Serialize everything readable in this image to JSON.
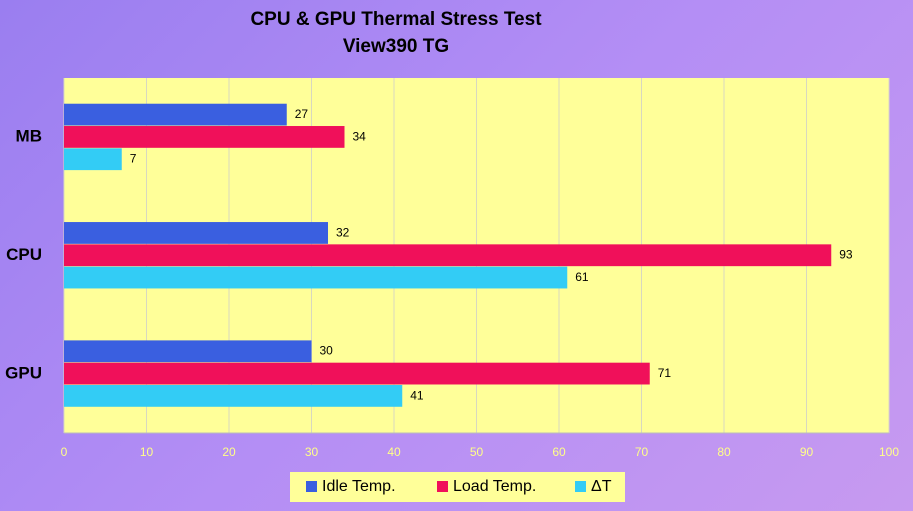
{
  "chart_data": {
    "type": "bar",
    "orientation": "horizontal",
    "title": "CPU & GPU Thermal Stress Test",
    "subtitle": "View390 TG",
    "categories": [
      "MB",
      "CPU",
      "GPU"
    ],
    "series": [
      {
        "name": "Idle Temp.",
        "color": "#3a5fe0",
        "values": [
          27,
          32,
          30
        ]
      },
      {
        "name": "Load Temp.",
        "color": "#f0105a",
        "values": [
          34,
          93,
          71
        ]
      },
      {
        "name": "ΔT",
        "color": "#33ccf5",
        "values": [
          7,
          61,
          41
        ]
      }
    ],
    "xlim": [
      0,
      100
    ],
    "xticks": [
      0,
      10,
      20,
      30,
      40,
      50,
      60,
      70,
      80,
      90,
      100
    ],
    "grid": true,
    "legend": "bottom"
  }
}
